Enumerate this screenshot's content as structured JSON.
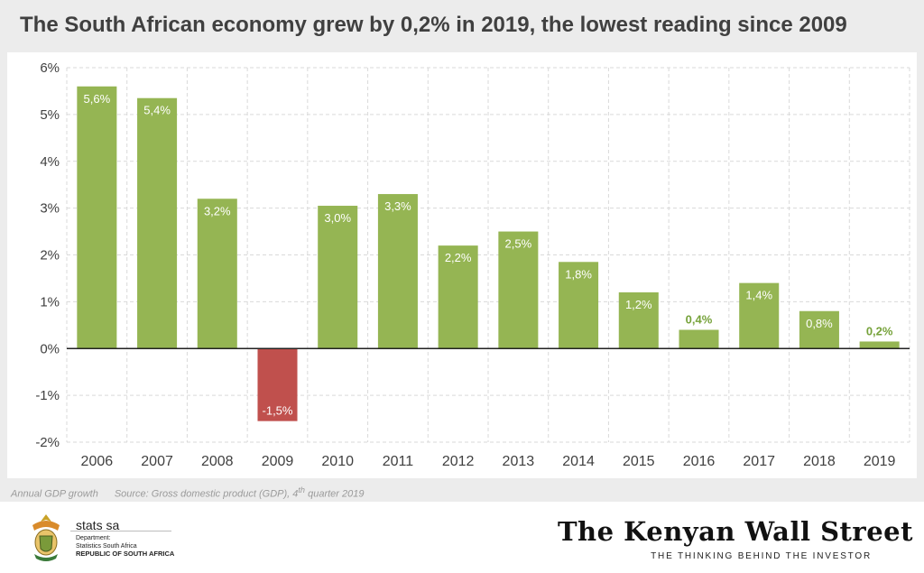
{
  "title": "The South African economy grew by 0,2% in 2019, the lowest reading since 2009",
  "note": {
    "label": "Annual GDP growth",
    "source_prefix": "Source: Gross domestic product (GDP), 4",
    "source_sup": "th",
    "source_suffix": " quarter 2019"
  },
  "footer": {
    "org_name": "stats sa",
    "org_dept_1": "Department:",
    "org_dept_2": "Statistics South Africa",
    "org_country": "REPUBLIC OF SOUTH AFRICA",
    "brand_name": "The Kenyan Wall Street",
    "brand_tagline": "THE THINKING BEHIND THE INVESTOR"
  },
  "colors": {
    "positive": "#95b553",
    "negative": "#c0504d",
    "grid": "#d9d9d9",
    "axis_text": "#404040",
    "label_inside": "#ffffff",
    "label_outside": "#76a23a"
  },
  "chart_data": {
    "type": "bar",
    "title": "The South African economy grew by 0,2% in 2019, the lowest reading since 2009",
    "xlabel": "",
    "ylabel": "",
    "categories": [
      "2006",
      "2007",
      "2008",
      "2009",
      "2010",
      "2011",
      "2012",
      "2013",
      "2014",
      "2015",
      "2016",
      "2017",
      "2018",
      "2019"
    ],
    "values": [
      5.6,
      5.35,
      3.2,
      -1.55,
      3.05,
      3.3,
      2.2,
      2.5,
      1.85,
      1.2,
      0.4,
      1.4,
      0.8,
      0.15
    ],
    "data_labels": [
      "5,6%",
      "5,4%",
      "3,2%",
      "-1,5%",
      "3,0%",
      "3,3%",
      "2,2%",
      "2,5%",
      "1,8%",
      "1,2%",
      "0,4%",
      "1,4%",
      "0,8%",
      "0,2%"
    ],
    "ylim": [
      -2,
      6
    ],
    "yticks": [
      -2,
      -1,
      0,
      1,
      2,
      3,
      4,
      5,
      6
    ],
    "ytick_labels": [
      "-2%",
      "-1%",
      "0%",
      "1%",
      "2%",
      "3%",
      "4%",
      "5%",
      "6%"
    ],
    "grid": true,
    "legend": "none"
  }
}
